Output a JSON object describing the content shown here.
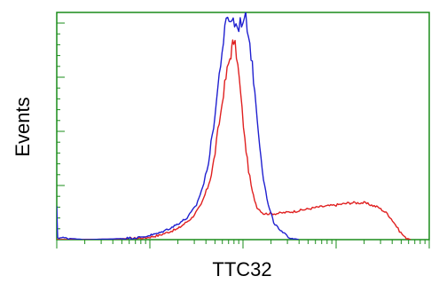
{
  "chart_data": {
    "type": "line",
    "xlabel": "TTC32",
    "ylabel": "Events",
    "grid": false,
    "legend": "none",
    "x_scale": "log",
    "axis_color": "#1a8c1a",
    "series": [
      {
        "color": "#e02020",
        "points": [
          [
            0.0,
            0.0
          ],
          [
            0.6,
            0.002
          ],
          [
            0.95,
            0.008
          ],
          [
            1.1,
            0.02
          ],
          [
            1.3,
            0.05
          ],
          [
            1.45,
            0.1
          ],
          [
            1.55,
            0.16
          ],
          [
            1.62,
            0.24
          ],
          [
            1.66,
            0.3
          ],
          [
            1.7,
            0.4
          ],
          [
            1.73,
            0.5
          ],
          [
            1.76,
            0.58
          ],
          [
            1.79,
            0.68
          ],
          [
            1.83,
            0.78
          ],
          [
            1.86,
            0.84
          ],
          [
            1.88,
            0.88
          ],
          [
            1.9,
            0.92
          ],
          [
            1.93,
            0.86
          ],
          [
            1.96,
            0.74
          ],
          [
            1.99,
            0.6
          ],
          [
            2.02,
            0.46
          ],
          [
            2.06,
            0.32
          ],
          [
            2.1,
            0.22
          ],
          [
            2.15,
            0.15
          ],
          [
            2.22,
            0.12
          ],
          [
            2.35,
            0.12
          ],
          [
            2.55,
            0.13
          ],
          [
            2.8,
            0.15
          ],
          [
            3.0,
            0.16
          ],
          [
            3.15,
            0.17
          ],
          [
            3.3,
            0.17
          ],
          [
            3.45,
            0.15
          ],
          [
            3.55,
            0.12
          ],
          [
            3.62,
            0.08
          ],
          [
            3.68,
            0.04
          ],
          [
            3.74,
            0.01
          ],
          [
            3.8,
            0.0
          ]
        ]
      },
      {
        "color": "#2020d0",
        "points": [
          [
            0.0,
            0.15
          ],
          [
            0.01,
            0.01
          ],
          [
            0.3,
            0.0
          ],
          [
            0.6,
            0.003
          ],
          [
            0.9,
            0.01
          ],
          [
            1.1,
            0.03
          ],
          [
            1.25,
            0.06
          ],
          [
            1.4,
            0.1
          ],
          [
            1.5,
            0.16
          ],
          [
            1.58,
            0.26
          ],
          [
            1.63,
            0.36
          ],
          [
            1.67,
            0.48
          ],
          [
            1.7,
            0.58
          ],
          [
            1.73,
            0.7
          ],
          [
            1.76,
            0.82
          ],
          [
            1.79,
            0.92
          ],
          [
            1.82,
            1.0
          ],
          [
            1.85,
            1.02
          ],
          [
            1.88,
            1.02
          ],
          [
            1.91,
            1.0
          ],
          [
            1.94,
            0.98
          ],
          [
            1.97,
            1.0
          ],
          [
            2.0,
            1.02
          ],
          [
            2.03,
            1.02
          ],
          [
            2.06,
            0.96
          ],
          [
            2.1,
            0.8
          ],
          [
            2.14,
            0.62
          ],
          [
            2.18,
            0.44
          ],
          [
            2.22,
            0.28
          ],
          [
            2.27,
            0.16
          ],
          [
            2.33,
            0.08
          ],
          [
            2.4,
            0.04
          ],
          [
            2.5,
            0.01
          ],
          [
            2.6,
            0.0
          ]
        ]
      }
    ],
    "xlim": [
      0,
      4
    ],
    "ylim": [
      0,
      1
    ],
    "x_major_ticks": [
      0,
      1,
      2,
      3,
      4
    ],
    "y_major_ticks": [
      0,
      0.25,
      0.5,
      0.75,
      1.0
    ]
  }
}
